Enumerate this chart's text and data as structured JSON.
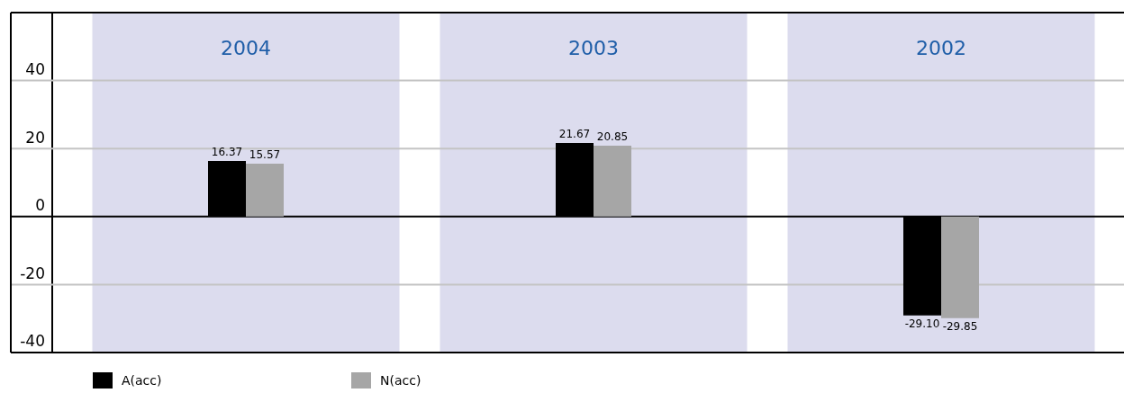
{
  "chart_data": {
    "type": "bar",
    "categories": [
      "2004",
      "2003",
      "2002"
    ],
    "series": [
      {
        "name": "A(acc)",
        "color": "#000000",
        "values": [
          16.37,
          21.67,
          -29.1
        ],
        "value_labels": [
          "16.37",
          "21.67",
          "-29.10"
        ]
      },
      {
        "name": "N(acc)",
        "color": "#a6a6a6",
        "values": [
          15.57,
          20.85,
          -29.85
        ],
        "value_labels": [
          "15.57",
          "20.85",
          "-29.85"
        ]
      }
    ],
    "ylim": [
      -40,
      60
    ],
    "yticks": [
      -40,
      -20,
      0,
      20,
      40
    ],
    "bands": [
      {
        "axis": "x",
        "from": "2004",
        "to": "2004",
        "color": "#dcdcee"
      },
      {
        "axis": "x",
        "from": "2003",
        "to": "2003",
        "color": "#dcdcee"
      },
      {
        "axis": "x",
        "from": "2002",
        "to": "2002",
        "color": "#dcdcee"
      }
    ],
    "grid": "y",
    "legend": "bottom left"
  }
}
